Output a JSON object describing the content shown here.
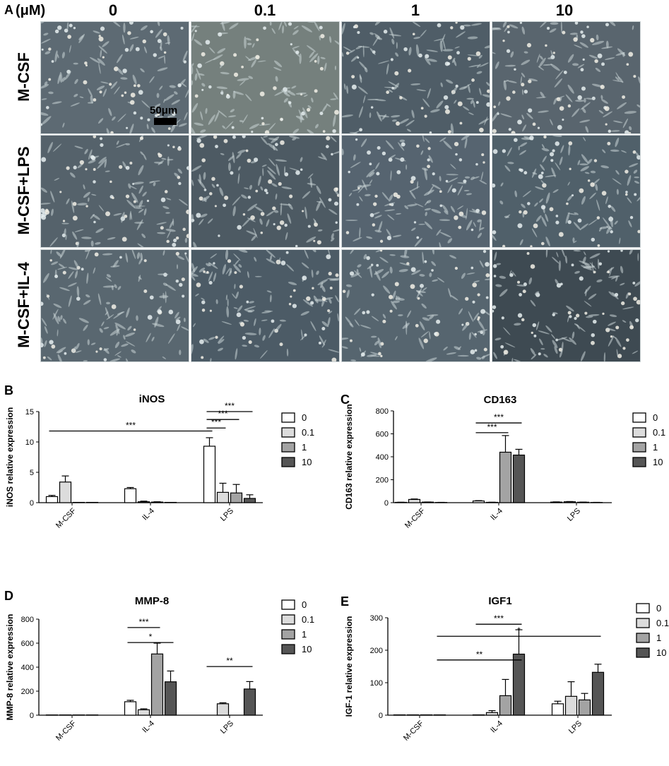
{
  "figure": {
    "panel_a": {
      "letter": "A",
      "unit_label": "(μM)",
      "columns": [
        "0",
        "0.1",
        "1",
        "10"
      ],
      "rows": [
        "M-CSF",
        "M-CSF+LPS",
        "M-CSF+IL-4"
      ],
      "scale_bar": "50μm",
      "tints": [
        "#5d6a73",
        "#75807d",
        "#4f5d67",
        "#59656e",
        "#55626b",
        "#4d5a63",
        "#566470",
        "#50606a",
        "#596770",
        "#4c5b66",
        "#56656f",
        "#3e4a52"
      ]
    },
    "legend_labels": [
      "0",
      "0.1",
      "1",
      "10"
    ],
    "bar_colors": [
      "#ffffff",
      "#dcdcdc",
      "#a3a3a3",
      "#555555"
    ]
  },
  "chart_data": [
    {
      "letter": "B",
      "type": "bar",
      "title": "iNOS",
      "ylabel": "iNOS relative expression",
      "categories": [
        "M-CSF",
        "IL-4",
        "LPS"
      ],
      "ylim": [
        0,
        15
      ],
      "yticks": [
        0,
        5,
        10,
        15
      ],
      "series": [
        {
          "name": "0",
          "values": [
            1.0,
            2.3,
            9.3
          ],
          "errors": [
            0.2,
            0.2,
            1.4
          ]
        },
        {
          "name": "0.1",
          "values": [
            3.4,
            0.15,
            1.7
          ],
          "errors": [
            1.0,
            0.1,
            1.5
          ]
        },
        {
          "name": "1",
          "values": [
            0.05,
            0.1,
            1.6
          ],
          "errors": [
            0,
            0.05,
            1.4
          ]
        },
        {
          "name": "10",
          "values": [
            0.05,
            0.05,
            0.7
          ],
          "errors": [
            0,
            0,
            0.6
          ]
        }
      ],
      "brackets": [
        {
          "from": [
            0,
            0
          ],
          "to": [
            2,
            0
          ],
          "y": 11.8,
          "label": "***"
        },
        {
          "from": [
            2,
            0
          ],
          "to": [
            2,
            1
          ],
          "y": 12.3,
          "label": "***"
        },
        {
          "from": [
            2,
            0
          ],
          "to": [
            2,
            2
          ],
          "y": 13.7,
          "label": "***"
        },
        {
          "from": [
            2,
            0
          ],
          "to": [
            2,
            3
          ],
          "y": 15.0,
          "label": "***"
        }
      ]
    },
    {
      "letter": "C",
      "type": "bar",
      "title": "CD163",
      "ylabel": "CD163 relative expression",
      "categories": [
        "M-CSF",
        "IL-4",
        "LPS"
      ],
      "ylim": [
        0,
        800
      ],
      "yticks": [
        0,
        200,
        400,
        600,
        800
      ],
      "series": [
        {
          "name": "0",
          "values": [
            3,
            15,
            5
          ],
          "errors": [
            1,
            3,
            2
          ]
        },
        {
          "name": "0.1",
          "values": [
            28,
            3,
            8
          ],
          "errors": [
            4,
            1,
            2
          ]
        },
        {
          "name": "1",
          "values": [
            5,
            440,
            4
          ],
          "errors": [
            1,
            145,
            1
          ]
        },
        {
          "name": "10",
          "values": [
            2,
            415,
            2
          ],
          "errors": [
            1,
            50,
            1
          ]
        }
      ],
      "brackets": [
        {
          "from": [
            1,
            0
          ],
          "to": [
            1,
            2
          ],
          "y": 610,
          "label": "***"
        },
        {
          "from": [
            1,
            0
          ],
          "to": [
            1,
            3
          ],
          "y": 695,
          "label": "***"
        }
      ]
    },
    {
      "letter": "D",
      "type": "bar",
      "title": "MMP-8",
      "ylabel": "MMP-8 relative expression",
      "categories": [
        "M-CSF",
        "IL-4",
        "LPS"
      ],
      "ylim": [
        0,
        800
      ],
      "yticks": [
        0,
        200,
        400,
        600,
        800
      ],
      "series": [
        {
          "name": "0",
          "values": [
            2,
            112,
            0
          ],
          "errors": [
            0,
            12,
            0
          ]
        },
        {
          "name": "0.1",
          "values": [
            2,
            45,
            95
          ],
          "errors": [
            0,
            8,
            8
          ]
        },
        {
          "name": "1",
          "values": [
            2,
            510,
            0
          ],
          "errors": [
            0,
            90,
            0
          ]
        },
        {
          "name": "10",
          "values": [
            2,
            278,
            218
          ],
          "errors": [
            0,
            90,
            62
          ]
        }
      ],
      "brackets": [
        {
          "from": [
            1,
            0
          ],
          "to": [
            1,
            2
          ],
          "y": 730,
          "label": "***"
        },
        {
          "from": [
            1,
            0
          ],
          "to": [
            1,
            3
          ],
          "y": 605,
          "label": "*"
        },
        {
          "from": [
            2,
            0
          ],
          "to": [
            2,
            3
          ],
          "y": 405,
          "label": "**"
        }
      ]
    },
    {
      "letter": "E",
      "type": "bar",
      "title": "IGF1",
      "ylabel": "IGF-1 relative expression",
      "categories": [
        "M-CSF",
        "IL-4",
        "LPS"
      ],
      "ylim": [
        0,
        300
      ],
      "yticks": [
        0,
        100,
        200,
        300
      ],
      "series": [
        {
          "name": "0",
          "values": [
            1,
            1,
            35
          ],
          "errors": [
            0,
            0,
            8
          ]
        },
        {
          "name": "0.1",
          "values": [
            1,
            8,
            58
          ],
          "errors": [
            0,
            6,
            45
          ]
        },
        {
          "name": "1",
          "values": [
            1,
            60,
            47
          ],
          "errors": [
            0,
            50,
            20
          ]
        },
        {
          "name": "10",
          "values": [
            1,
            188,
            132
          ],
          "errors": [
            0,
            75,
            25
          ]
        }
      ],
      "brackets": [
        {
          "from": [
            1,
            0
          ],
          "to": [
            1,
            3
          ],
          "y": 280,
          "label": "***"
        },
        {
          "from": [
            0,
            3
          ],
          "to": [
            2,
            3
          ],
          "y": 243,
          "label": "*"
        },
        {
          "from": [
            0,
            3
          ],
          "to": [
            1,
            3
          ],
          "y": 170,
          "label": "**"
        }
      ]
    }
  ]
}
